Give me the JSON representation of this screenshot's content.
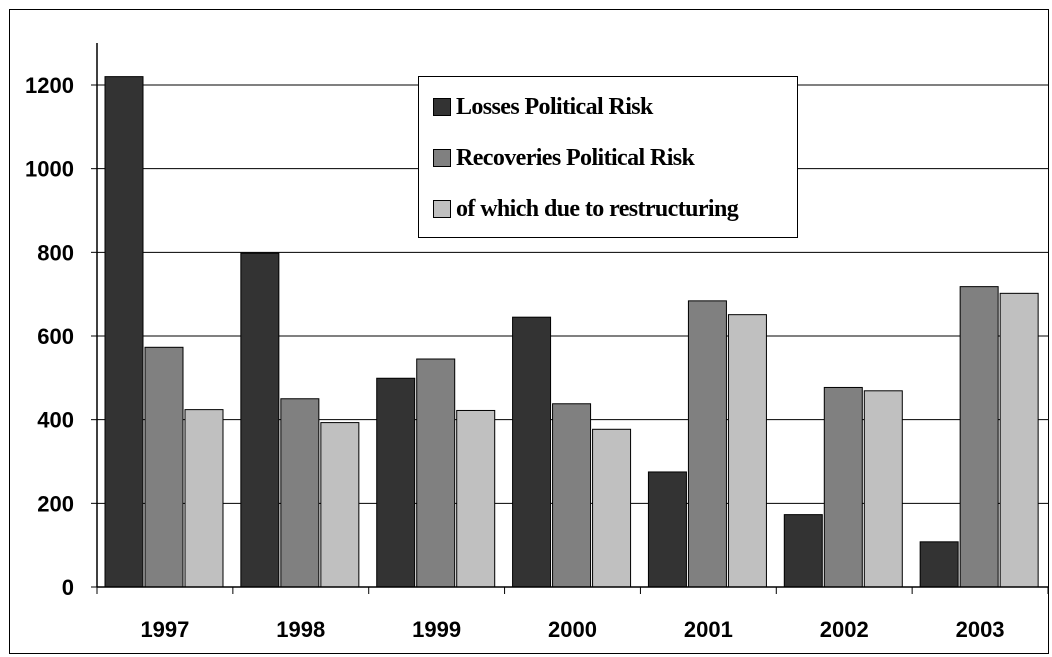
{
  "chart_data": {
    "type": "bar",
    "categories": [
      "1997",
      "1998",
      "1999",
      "2000",
      "2001",
      "2002",
      "2003"
    ],
    "series": [
      {
        "name": "Losses Political Risk",
        "color": "#333333",
        "values": [
          1220,
          798,
          499,
          645,
          275,
          173,
          108
        ]
      },
      {
        "name": "Recoveries Political Risk",
        "color": "#808080",
        "values": [
          573,
          450,
          545,
          438,
          684,
          477,
          718
        ]
      },
      {
        "name": "of which due to restructuring",
        "color": "#c0c0c0",
        "values": [
          424,
          393,
          422,
          377,
          651,
          469,
          702
        ]
      }
    ],
    "yticks": [
      "0",
      "200",
      "400",
      "600",
      "800",
      "1000",
      "1200"
    ],
    "ylim": [
      0,
      1300
    ],
    "grid": true,
    "legend_position": "top-center"
  }
}
